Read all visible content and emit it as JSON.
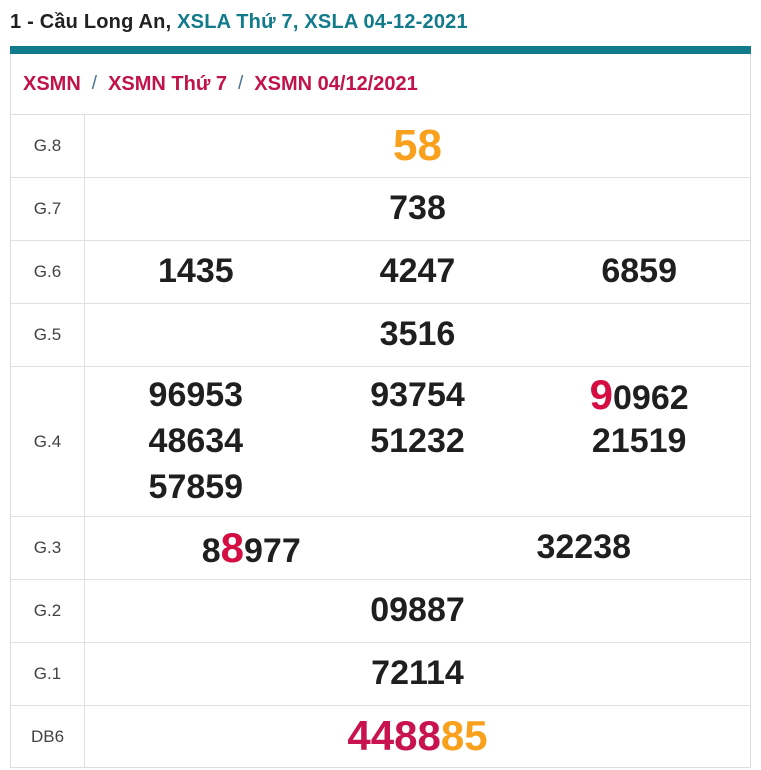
{
  "header": {
    "title_dark": "1 - Cầu Long An,",
    "title_teal": "XSLA Thứ 7, XSLA 04-12-2021"
  },
  "breadcrumb": {
    "items": [
      "XSMN",
      "XSMN Thứ 7",
      "XSMN 04/12/2021"
    ],
    "separator": "/"
  },
  "results": {
    "rows": [
      {
        "label": "G.8",
        "values": [
          "58"
        ]
      },
      {
        "label": "G.7",
        "values": [
          "738"
        ]
      },
      {
        "label": "G.6",
        "values": [
          "1435",
          "4247",
          "6859"
        ]
      },
      {
        "label": "G.5",
        "values": [
          "3516"
        ]
      },
      {
        "label": "G.4",
        "values": [
          "96953",
          "93754",
          [
            "9",
            "0962"
          ],
          "48634",
          "51232",
          "21519",
          "57859"
        ]
      },
      {
        "label": "G.3",
        "values": [
          [
            "8",
            "8",
            "977"
          ],
          "32238"
        ]
      },
      {
        "label": "G.2",
        "values": [
          "09887"
        ]
      },
      {
        "label": "G.1",
        "values": [
          "72114"
        ]
      },
      {
        "label": "DB6",
        "values": [
          [
            "4488",
            "85"
          ]
        ]
      }
    ]
  },
  "colors": {
    "accent_teal": "#117a8b",
    "breadcrumb_red": "#c11349",
    "separator_blue": "#476e93",
    "highlight_red": "#d40d42",
    "db6_crimson": "#c9134e",
    "number_orange": "#f9a11c",
    "number_dark": "#1f1f1f",
    "border_gray": "#dddddd"
  }
}
